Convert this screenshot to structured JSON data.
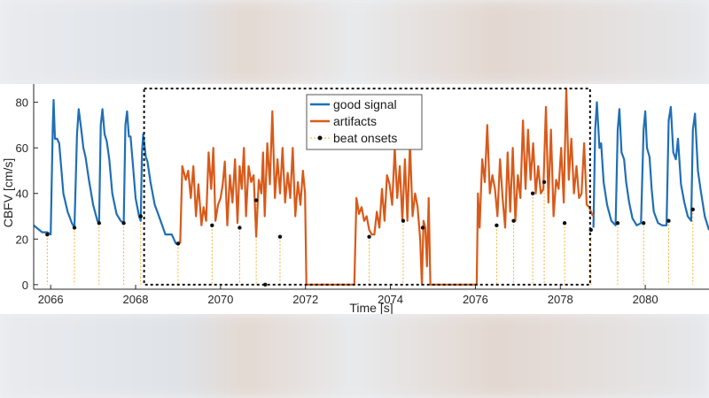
{
  "colors": {
    "good": "#1f6fb5",
    "artifact": "#d85a1a",
    "onset_line": "#f2b33a",
    "onset_marker": "#111111",
    "axis": "#262626",
    "box": "#111111"
  },
  "chart_data": {
    "type": "line",
    "xlabel": "Time [s]",
    "ylabel": "CBFV [cm/s]",
    "xlim": [
      2065.6,
      2081.5
    ],
    "ylim": [
      -2,
      88
    ],
    "xticks": [
      2066,
      2068,
      2070,
      2072,
      2074,
      2076,
      2078,
      2080
    ],
    "yticks": [
      0,
      20,
      40,
      60,
      80
    ],
    "grid": false,
    "legend_position": "top-center",
    "legend": [
      {
        "name": "good signal",
        "style": "line"
      },
      {
        "name": "artifacts",
        "style": "line"
      },
      {
        "name": "beat onsets",
        "style": "marker-line"
      }
    ],
    "artifact_region_box": {
      "x": [
        2068.2,
        2078.7
      ],
      "y": [
        0,
        86
      ]
    },
    "series": [
      {
        "name": "good signal",
        "x": [
          2065.6,
          2065.8,
          2065.92,
          2066.0,
          2066.05,
          2066.07,
          2066.1,
          2066.15,
          2066.2,
          2066.3,
          2066.4,
          2066.5,
          2066.56,
          2066.62,
          2066.66,
          2066.72,
          2066.77,
          2066.82,
          2066.9,
          2067.0,
          2067.1,
          2067.14,
          2067.18,
          2067.22,
          2067.27,
          2067.32,
          2067.38,
          2067.45,
          2067.55,
          2067.65,
          2067.72,
          2067.76,
          2067.8,
          2067.84,
          2067.88,
          2067.94,
          2068.0,
          2068.08,
          2068.12,
          2068.15,
          2068.18,
          2068.24,
          2068.28,
          2068.35,
          2068.45,
          2068.55,
          2068.7,
          2068.85,
          2068.95,
          2069.0,
          2069.05,
          null,
          2078.78,
          2078.82,
          2078.86,
          2078.92,
          2078.96,
          2079.02,
          2079.1,
          2079.2,
          2079.3,
          2079.35,
          2079.39,
          2079.44,
          2079.5,
          2079.55,
          2079.62,
          2079.7,
          2079.8,
          2079.9,
          2079.96,
          2080.0,
          2080.04,
          2080.1,
          2080.15,
          2080.2,
          2080.3,
          2080.4,
          2080.5,
          2080.55,
          2080.6,
          2080.66,
          2080.72,
          2080.77,
          2080.84,
          2080.92,
          2081.0,
          2081.08,
          2081.12,
          2081.17,
          2081.24,
          2081.3,
          2081.4,
          2081.5
        ],
        "values": [
          26,
          23,
          23,
          22,
          70,
          81,
          64,
          64,
          62,
          40,
          32,
          27,
          25,
          66,
          77,
          68,
          60,
          56,
          46,
          35,
          28,
          27,
          70,
          77,
          66,
          63,
          55,
          40,
          31,
          28,
          27,
          70,
          76,
          65,
          65,
          52,
          38,
          30,
          28,
          58,
          66,
          56,
          54,
          45,
          35,
          30,
          22,
          22,
          18,
          18,
          19,
          null,
          25,
          68,
          80,
          60,
          62,
          45,
          35,
          28,
          26,
          68,
          77,
          58,
          55,
          45,
          36,
          29,
          26,
          27,
          68,
          76,
          60,
          56,
          42,
          32,
          27,
          26,
          26,
          72,
          78,
          58,
          55,
          64,
          44,
          36,
          30,
          28,
          68,
          75,
          50,
          42,
          30,
          24
        ]
      },
      {
        "name": "artifacts",
        "x": [
          2069.05,
          2069.1,
          2069.18,
          2069.24,
          2069.3,
          2069.36,
          2069.42,
          2069.48,
          2069.55,
          2069.6,
          2069.66,
          2069.72,
          2069.78,
          2069.83,
          2069.88,
          2069.94,
          2070.0,
          2070.05,
          2070.1,
          2070.16,
          2070.22,
          2070.28,
          2070.34,
          2070.4,
          2070.45,
          2070.5,
          2070.55,
          2070.6,
          2070.66,
          2070.72,
          2070.78,
          2070.84,
          2070.9,
          2070.96,
          2071.0,
          2071.04,
          2071.1,
          2071.16,
          2071.22,
          2071.28,
          2071.34,
          2071.4,
          2071.46,
          2071.52,
          2071.58,
          2071.64,
          2071.7,
          2071.76,
          2071.82,
          2071.88,
          2071.94,
          2071.99,
          2072.02,
          2072.05,
          2073.1,
          2073.15,
          2073.2,
          2073.26,
          2073.32,
          2073.38,
          2073.44,
          2073.5,
          2073.56,
          2073.62,
          2073.68,
          2073.74,
          2073.8,
          2073.86,
          2073.92,
          2073.98,
          2074.04,
          2074.1,
          2074.16,
          2074.22,
          2074.28,
          2074.34,
          2074.4,
          2074.46,
          2074.52,
          2074.58,
          2074.64,
          2074.7,
          2074.74,
          2074.78,
          2074.82,
          2074.86,
          2074.9,
          2074.94,
          2074.98,
          2075.02,
          2075.06,
          2075.1,
          2075.14,
          2075.18,
          2075.22,
          2075.25,
          2075.28,
          2076.0,
          2076.03,
          2076.06,
          2076.1,
          2076.16,
          2076.22,
          2076.28,
          2076.34,
          2076.4,
          2076.46,
          2076.52,
          2076.58,
          2076.64,
          2076.7,
          2076.76,
          2076.82,
          2076.88,
          2076.94,
          2077.0,
          2077.06,
          2077.12,
          2077.18,
          2077.24,
          2077.3,
          2077.36,
          2077.42,
          2077.48,
          2077.54,
          2077.6,
          2077.66,
          2077.72,
          2077.78,
          2077.84,
          2077.9,
          2077.96,
          2078.02,
          2078.08,
          2078.14,
          2078.2,
          2078.26,
          2078.32,
          2078.38,
          2078.44,
          2078.5,
          2078.56,
          2078.62,
          2078.68,
          2078.74,
          2078.78
        ],
        "values": [
          18,
          52,
          46,
          50,
          38,
          52,
          30,
          44,
          26,
          34,
          28,
          58,
          42,
          60,
          28,
          35,
          38,
          44,
          54,
          26,
          48,
          36,
          55,
          27,
          52,
          42,
          60,
          30,
          52,
          45,
          48,
          21,
          46,
          40,
          58,
          30,
          62,
          44,
          76,
          38,
          55,
          40,
          60,
          36,
          49,
          38,
          60,
          30,
          45,
          35,
          50,
          40,
          0,
          0,
          0,
          0,
          38,
          31,
          34,
          28,
          30,
          24,
          22,
          22,
          32,
          25,
          42,
          28,
          48,
          44,
          35,
          60,
          38,
          52,
          28,
          55,
          28,
          62,
          30,
          40,
          34,
          20,
          0,
          28,
          25,
          8,
          38,
          0,
          0,
          0,
          0,
          0,
          0,
          0,
          0,
          0,
          0,
          0,
          0,
          40,
          25,
          55,
          45,
          70,
          40,
          48,
          42,
          30,
          55,
          38,
          25,
          58,
          32,
          60,
          28,
          48,
          38,
          72,
          42,
          68,
          46,
          62,
          40,
          52,
          40,
          42,
          78,
          36,
          68,
          30,
          46,
          42,
          60,
          36,
          86,
          46,
          64,
          40,
          52,
          38,
          40,
          62,
          35,
          34,
          31,
          30
        ]
      }
    ],
    "beat_onsets": {
      "x": [
        2065.92,
        2066.56,
        2067.14,
        2067.72,
        2068.12,
        2069.0,
        2069.8,
        2070.45,
        2070.84,
        2071.05,
        2071.4,
        2073.5,
        2074.3,
        2074.76,
        2076.5,
        2076.9,
        2077.35,
        2077.62,
        2078.1,
        2078.72,
        2079.35,
        2079.96,
        2080.55,
        2081.12
      ],
      "y": [
        22,
        25,
        27,
        27,
        30,
        18,
        26,
        25,
        37,
        0,
        21,
        21,
        28,
        25,
        26,
        28,
        40,
        45,
        27,
        24,
        27,
        27,
        28,
        33
      ]
    }
  }
}
